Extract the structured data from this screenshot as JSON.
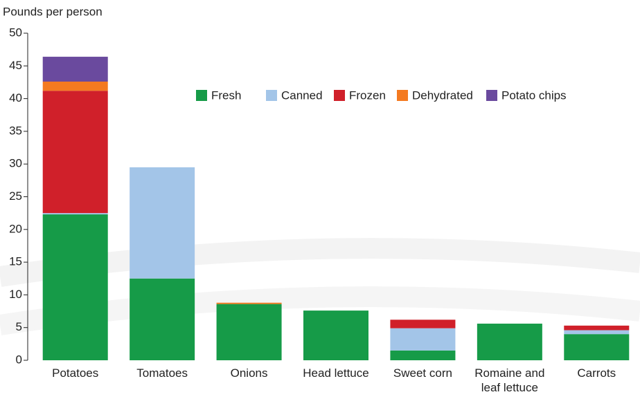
{
  "chart_data": {
    "type": "stacked_bar",
    "y_label": "Pounds per person",
    "categories": [
      "Potatoes",
      "Tomatoes",
      "Onions",
      "Head lettuce",
      "Sweet corn",
      "Romaine and leaf lettuce",
      "Carrots"
    ],
    "series": [
      {
        "name": "Fresh",
        "color": "#169b48",
        "values": [
          22.3,
          12.5,
          8.6,
          7.6,
          1.5,
          5.6,
          4.0
        ]
      },
      {
        "name": "Canned",
        "color": "#a3c5e8",
        "values": [
          0.2,
          17.0,
          0,
          0,
          3.4,
          0,
          0.6
        ]
      },
      {
        "name": "Frozen",
        "color": "#d0202a",
        "values": [
          18.7,
          0,
          0,
          0,
          1.3,
          0,
          0.7
        ]
      },
      {
        "name": "Dehydrated",
        "color": "#f47a20",
        "values": [
          1.4,
          0,
          0.2,
          0,
          0,
          0,
          0
        ]
      },
      {
        "name": "Potato chips",
        "color": "#6a4a9e",
        "values": [
          3.8,
          0,
          0,
          0,
          0,
          0,
          0
        ]
      }
    ],
    "ylim": [
      0,
      50
    ],
    "yticks": [
      0,
      5,
      10,
      15,
      20,
      25,
      30,
      35,
      40,
      45,
      50
    ]
  }
}
